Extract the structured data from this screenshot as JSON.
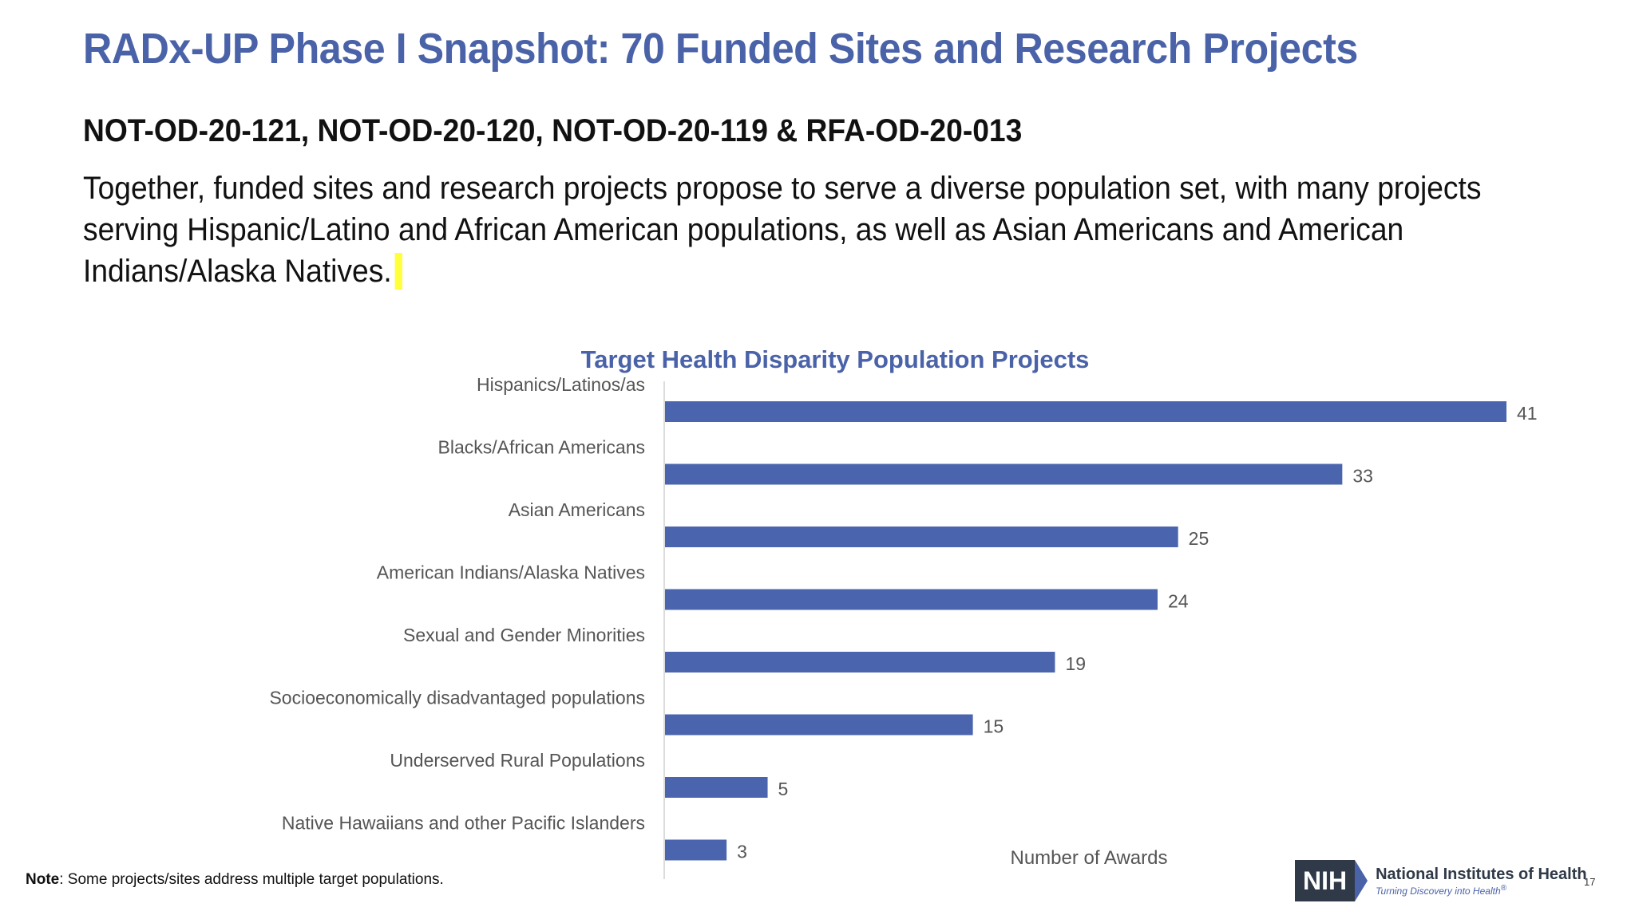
{
  "slide": {
    "title": "RADx-UP Phase I Snapshot: 70 Funded Sites and Research Projects",
    "subtitle": "NOT-OD-20-121, NOT-OD-20-120, NOT-OD-20-119 & RFA-OD-20-013",
    "body": "Together, funded sites and research projects propose to serve a diverse population set, with many projects serving Hispanic/Latino and African American populations, as well as Asian Americans and American Indians/Alaska Natives.",
    "note_label": "Note",
    "note_text": ": Some projects/sites address multiple target populations.",
    "page_number": "17",
    "logo": {
      "mark": "NIH",
      "name": "National Institutes of Health",
      "tagline": "Turning Discovery into Health",
      "tagline_mark": "®"
    }
  },
  "colors": {
    "title": "#4a62a8",
    "bar": "#4a65ad",
    "highlight": "#ffff3c"
  },
  "chart_data": {
    "type": "bar",
    "orientation": "horizontal",
    "title": "Target Health Disparity Population Projects",
    "xlabel": "Number of Awards",
    "ylabel": "",
    "categories": [
      "Hispanics/Latinos/as",
      "Blacks/African Americans",
      "Asian Americans",
      "American Indians/Alaska Natives",
      "Sexual and Gender Minorities",
      "Socioeconomically disadvantaged populations",
      "Underserved Rural Populations",
      "Native Hawaiians and other Pacific Islanders"
    ],
    "values": [
      41,
      33,
      25,
      24,
      19,
      15,
      5,
      3
    ],
    "xlim": [
      0,
      45
    ],
    "data_labels": true,
    "grid": false,
    "legend": "none"
  }
}
